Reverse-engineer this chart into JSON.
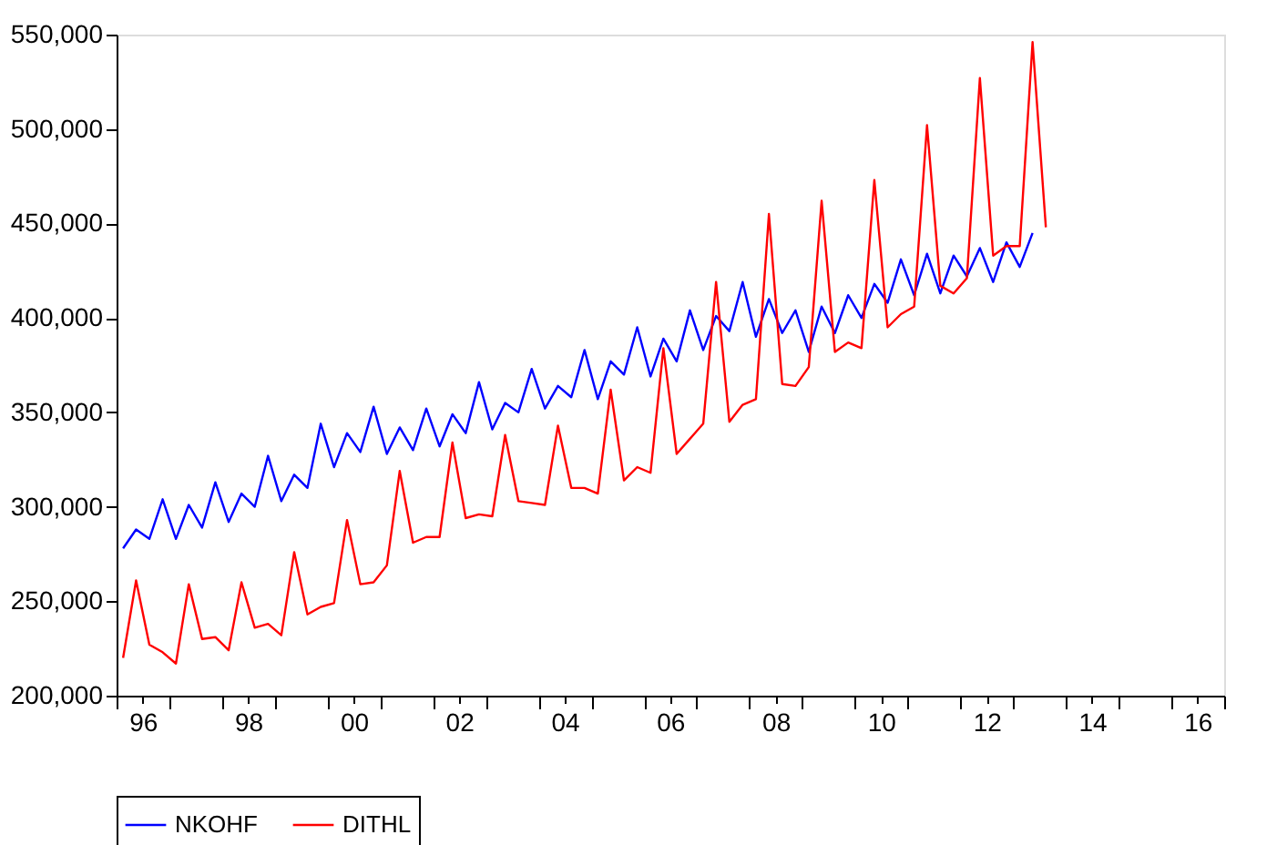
{
  "chart_data": {
    "type": "line",
    "x": [
      "1996-02-15",
      "1996-05-15",
      "1996-08-15",
      "1996-11-15",
      "1997-02-15",
      "1997-05-15",
      "1997-08-15",
      "1997-11-15",
      "1998-02-15",
      "1998-05-15",
      "1998-08-15",
      "1998-11-15",
      "1999-02-15",
      "1999-05-15",
      "1999-08-15",
      "1999-11-15",
      "2000-02-15",
      "2000-05-15",
      "2000-08-15",
      "2000-11-15",
      "2001-02-15",
      "2001-05-15",
      "2001-08-15",
      "2001-11-15",
      "2002-02-15",
      "2002-05-15",
      "2002-08-15",
      "2002-11-15",
      "2003-02-15",
      "2003-05-15",
      "2003-08-15",
      "2003-11-15",
      "2004-02-15",
      "2004-05-15",
      "2004-08-15",
      "2004-11-15",
      "2005-02-15",
      "2005-05-15",
      "2005-08-15",
      "2005-11-15",
      "2006-02-15",
      "2006-05-15",
      "2006-08-15",
      "2006-11-15",
      "2007-02-15",
      "2007-05-15",
      "2007-08-15",
      "2007-11-15",
      "2008-02-15",
      "2008-05-15",
      "2008-08-15",
      "2008-11-15",
      "2009-02-15",
      "2009-05-15",
      "2009-08-15",
      "2009-11-15",
      "2010-02-15",
      "2010-05-15",
      "2010-08-15",
      "2010-11-15",
      "2011-02-15",
      "2011-05-15",
      "2011-08-15",
      "2011-11-15",
      "2012-02-15",
      "2012-05-15",
      "2012-08-15",
      "2012-11-15",
      "2013-02-15",
      "2013-05-15",
      "2013-08-15"
    ],
    "series": [
      {
        "name": "NKOHF",
        "color": "#0000ff",
        "values": [
          278000,
          288000,
          283000,
          304000,
          283000,
          301000,
          289000,
          313000,
          292000,
          307000,
          300000,
          327000,
          303000,
          317000,
          310000,
          344000,
          321000,
          339000,
          329000,
          353000,
          328000,
          342000,
          330000,
          352000,
          332000,
          349000,
          339000,
          366000,
          341000,
          355000,
          350000,
          373000,
          352000,
          364000,
          358000,
          383000,
          357000,
          377000,
          370000,
          395000,
          369000,
          389000,
          377000,
          404000,
          383000,
          401000,
          393000,
          419000,
          390000,
          410000,
          392000,
          404000,
          382000,
          406000,
          392000,
          412000,
          400000,
          418000,
          408000,
          431000,
          412000,
          434000,
          413000,
          433000,
          422000,
          437000,
          419000,
          440000,
          427000,
          445000,
          null
        ]
      },
      {
        "name": "DITHL",
        "color": "#ff0000",
        "values": [
          220000,
          261000,
          227000,
          223000,
          217000,
          259000,
          230000,
          231000,
          224000,
          260000,
          236000,
          238000,
          232000,
          276000,
          243000,
          247000,
          249000,
          293000,
          259000,
          260000,
          269000,
          319000,
          281000,
          284000,
          284000,
          334000,
          294000,
          296000,
          295000,
          338000,
          303000,
          302000,
          301000,
          343000,
          310000,
          310000,
          307000,
          362000,
          314000,
          321000,
          318000,
          384000,
          328000,
          336000,
          344000,
          419000,
          345000,
          354000,
          357000,
          455000,
          365000,
          364000,
          374000,
          462000,
          382000,
          387000,
          384000,
          473000,
          395000,
          402000,
          406000,
          502000,
          417000,
          413000,
          421000,
          527000,
          433000,
          438000,
          438000,
          546000,
          448000
        ]
      }
    ],
    "xlim": [
      "1996-01-01",
      "2017-01-01"
    ],
    "xticks": [
      {
        "value": "1996-01-01",
        "label": null
      },
      {
        "value": "1996-07-01",
        "label": "96"
      },
      {
        "value": "1997-01-01",
        "label": null
      },
      {
        "value": "1998-01-01",
        "label": null
      },
      {
        "value": "1998-07-01",
        "label": "98"
      },
      {
        "value": "1999-01-01",
        "label": null
      },
      {
        "value": "2000-01-01",
        "label": null
      },
      {
        "value": "2000-07-01",
        "label": "00"
      },
      {
        "value": "2001-01-01",
        "label": null
      },
      {
        "value": "2002-01-01",
        "label": null
      },
      {
        "value": "2002-07-01",
        "label": "02"
      },
      {
        "value": "2003-01-01",
        "label": null
      },
      {
        "value": "2004-01-01",
        "label": null
      },
      {
        "value": "2004-07-01",
        "label": "04"
      },
      {
        "value": "2005-01-01",
        "label": null
      },
      {
        "value": "2006-01-01",
        "label": null
      },
      {
        "value": "2006-07-01",
        "label": "06"
      },
      {
        "value": "2007-01-01",
        "label": null
      },
      {
        "value": "2008-01-01",
        "label": null
      },
      {
        "value": "2008-07-01",
        "label": "08"
      },
      {
        "value": "2009-01-01",
        "label": null
      },
      {
        "value": "2010-01-01",
        "label": null
      },
      {
        "value": "2010-07-01",
        "label": "10"
      },
      {
        "value": "2011-01-01",
        "label": null
      },
      {
        "value": "2012-01-01",
        "label": null
      },
      {
        "value": "2012-07-01",
        "label": "12"
      },
      {
        "value": "2013-01-01",
        "label": null
      },
      {
        "value": "2014-01-01",
        "label": null
      },
      {
        "value": "2014-07-01",
        "label": "14"
      },
      {
        "value": "2015-01-01",
        "label": null
      },
      {
        "value": "2016-01-01",
        "label": null
      },
      {
        "value": "2016-07-01",
        "label": "16"
      },
      {
        "value": "2017-01-01",
        "label": null
      }
    ],
    "ylim": [
      200000,
      550000
    ],
    "yticks": [
      {
        "value": 200000,
        "label": "200,000"
      },
      {
        "value": 250000,
        "label": "250,000"
      },
      {
        "value": 300000,
        "label": "300,000"
      },
      {
        "value": 350000,
        "label": "350,000"
      },
      {
        "value": 400000,
        "label": "400,000"
      },
      {
        "value": 450000,
        "label": "450,000"
      },
      {
        "value": 500000,
        "label": "500,000"
      },
      {
        "value": 550000,
        "label": "550,000"
      }
    ],
    "grid": false,
    "legend": "bottom",
    "marker": "none",
    "line_style": "solid"
  }
}
